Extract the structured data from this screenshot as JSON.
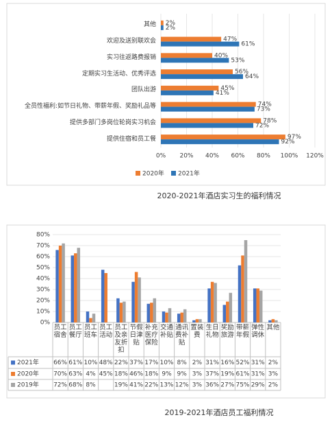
{
  "chart_data": [
    {
      "type": "bar",
      "orientation": "horizontal",
      "categories": [
        "其他",
        "欢迎及送别联欢会",
        "实习往返路费报销",
        "定期实习生活动、优秀评选",
        "团队出游",
        "全员性福利:如节日礼物、带薪年假、奖励礼品等",
        "提供多部门多岗位轮岗实习机会",
        "提供住宿和员工餐"
      ],
      "series": [
        {
          "name": "2020年",
          "color": "#ed7d31",
          "values": [
            2,
            47,
            40,
            56,
            45,
            74,
            78,
            97
          ],
          "value_labels": [
            "2%",
            "47%",
            "40%",
            "56%",
            "45%",
            "74%",
            "78%",
            "97%"
          ]
        },
        {
          "name": "2021年",
          "color": "#2e75b6",
          "values": [
            2,
            61,
            53,
            64,
            41,
            73,
            72,
            92
          ],
          "value_labels": [
            "2%",
            "61%",
            "53%",
            "64%",
            "41%",
            "73%",
            "72%",
            "92%"
          ]
        }
      ],
      "xlim": [
        0,
        120
      ],
      "xticks": [
        {
          "value": 0,
          "label": "0%"
        },
        {
          "value": 20,
          "label": "20%"
        },
        {
          "value": 40,
          "label": "40%"
        },
        {
          "value": 60,
          "label": "60%"
        },
        {
          "value": 80,
          "label": "80%"
        },
        {
          "value": 100,
          "label": "100%"
        },
        {
          "value": 120,
          "label": "120%"
        }
      ],
      "grid": true,
      "legend": "bottom",
      "caption": "2020-2021年酒店实习生的福利情况"
    },
    {
      "type": "bar",
      "orientation": "vertical",
      "data_table": true,
      "categories": [
        "员工宿舍",
        "员工餐厅",
        "员工班车",
        "员工活动",
        "员工及亲友折扣",
        "节假日津贴",
        "补充医疗保险",
        "交通补贴",
        "通讯费补贴",
        "置装费",
        "生日礼物",
        "奖励旅游",
        "带薪年假",
        "弹性调休",
        "其他"
      ],
      "series": [
        {
          "name": "2021年",
          "color": "#4472c4",
          "values": [
            66,
            61,
            10,
            48,
            22,
            37,
            17,
            10,
            8,
            2,
            31,
            16,
            52,
            31,
            2
          ],
          "value_labels": [
            "66%",
            "61%",
            "10%",
            "48%",
            "22%",
            "37%",
            "17%",
            "10%",
            "8%",
            "2%",
            "31%",
            "16%",
            "52%",
            "31%",
            "2%"
          ]
        },
        {
          "name": "2020年",
          "color": "#ed7d31",
          "values": [
            70,
            63,
            4,
            45,
            18,
            46,
            18,
            9,
            9,
            3,
            37,
            19,
            61,
            31,
            3
          ],
          "value_labels": [
            "70%",
            "63%",
            "4%",
            "45%",
            "18%",
            "46%",
            "18%",
            "9%",
            "9%",
            "3%",
            "37%",
            "19%",
            "61%",
            "31%",
            "3%"
          ]
        },
        {
          "name": "2019年",
          "color": "#a5a5a5",
          "values": [
            72,
            68,
            8,
            null,
            19,
            41,
            22,
            13,
            12,
            3,
            36,
            27,
            75,
            29,
            2
          ],
          "value_labels": [
            "72%",
            "68%",
            "8%",
            null,
            "19%",
            "41%",
            "22%",
            "13%",
            "12%",
            "3%",
            "36%",
            "27%",
            "75%",
            "29%",
            "2%"
          ]
        }
      ],
      "ylim": [
        0,
        80
      ],
      "yticks": [
        {
          "value": 0,
          "label": "0%"
        },
        {
          "value": 10,
          "label": "10%"
        },
        {
          "value": 20,
          "label": "20%"
        },
        {
          "value": 30,
          "label": "30%"
        },
        {
          "value": 40,
          "label": "40%"
        },
        {
          "value": 50,
          "label": "50%"
        },
        {
          "value": 60,
          "label": "60%"
        },
        {
          "value": 70,
          "label": "70%"
        },
        {
          "value": 80,
          "label": "80%"
        }
      ],
      "grid": true,
      "caption": "2019-2021年酒店员工福利情况"
    }
  ]
}
